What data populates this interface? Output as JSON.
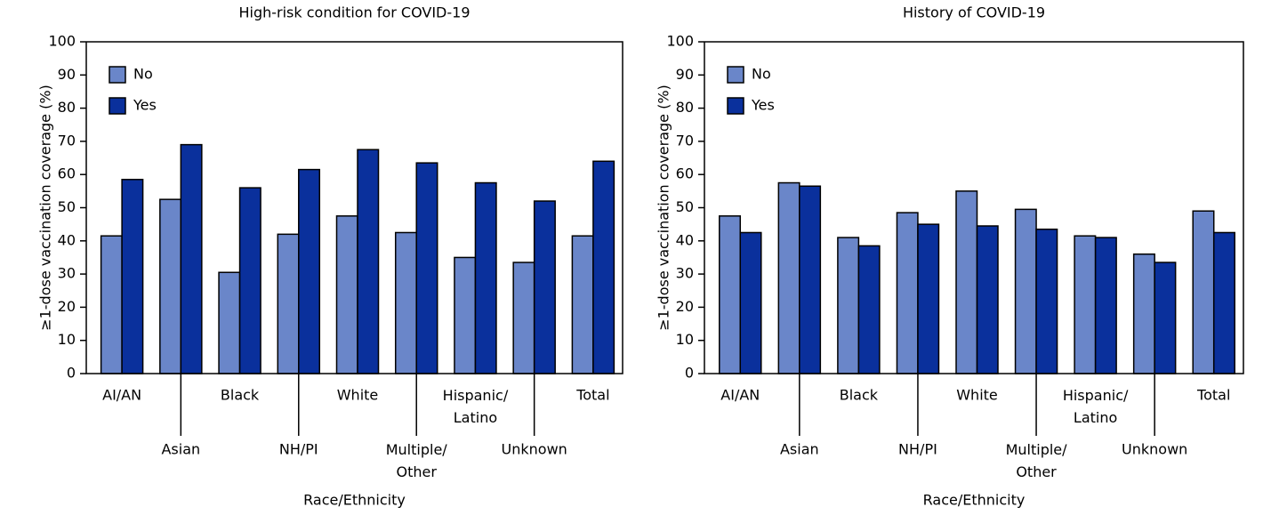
{
  "chart_data": [
    {
      "type": "bar",
      "title": "High-risk condition for COVID-19",
      "x_label": "Race/Ethnicity",
      "y_label": "≥1-dose vaccination coverage (%)",
      "categories": [
        "AI/AN",
        "Asian",
        "Black",
        "NH/PI",
        "White",
        "Multiple/\nOther",
        "Hispanic/\nLatino",
        "Unknown",
        "Total"
      ],
      "series": [
        {
          "name": "No",
          "color": "#6a86c9",
          "values": [
            41.5,
            52.5,
            30.5,
            42,
            47.5,
            42.5,
            35,
            33.5,
            41.5
          ]
        },
        {
          "name": "Yes",
          "color": "#0a309c",
          "values": [
            58.5,
            69,
            56,
            61.5,
            67.5,
            63.5,
            57.5,
            52,
            64
          ]
        }
      ],
      "ylim": [
        0,
        100
      ],
      "yticks": [
        0,
        10,
        20,
        30,
        40,
        50,
        60,
        70,
        80,
        90,
        100
      ],
      "legend": "upper left"
    },
    {
      "type": "bar",
      "title": "History of COVID-19",
      "x_label": "Race/Ethnicity",
      "y_label": "≥1-dose vaccination coverage (%)",
      "categories": [
        "AI/AN",
        "Asian",
        "Black",
        "NH/PI",
        "White",
        "Multiple/\nOther",
        "Hispanic/\nLatino",
        "Unknown",
        "Total"
      ],
      "series": [
        {
          "name": "No",
          "color": "#6a86c9",
          "values": [
            47.5,
            57.5,
            41,
            48.5,
            55,
            49.5,
            41.5,
            36,
            49
          ]
        },
        {
          "name": "Yes",
          "color": "#0a309c",
          "values": [
            42.5,
            56.5,
            38.5,
            45,
            44.5,
            43.5,
            41,
            33.5,
            42.5
          ]
        }
      ],
      "ylim": [
        0,
        100
      ],
      "yticks": [
        0,
        10,
        20,
        30,
        40,
        50,
        60,
        70,
        80,
        90,
        100
      ],
      "legend": "upper left"
    }
  ]
}
